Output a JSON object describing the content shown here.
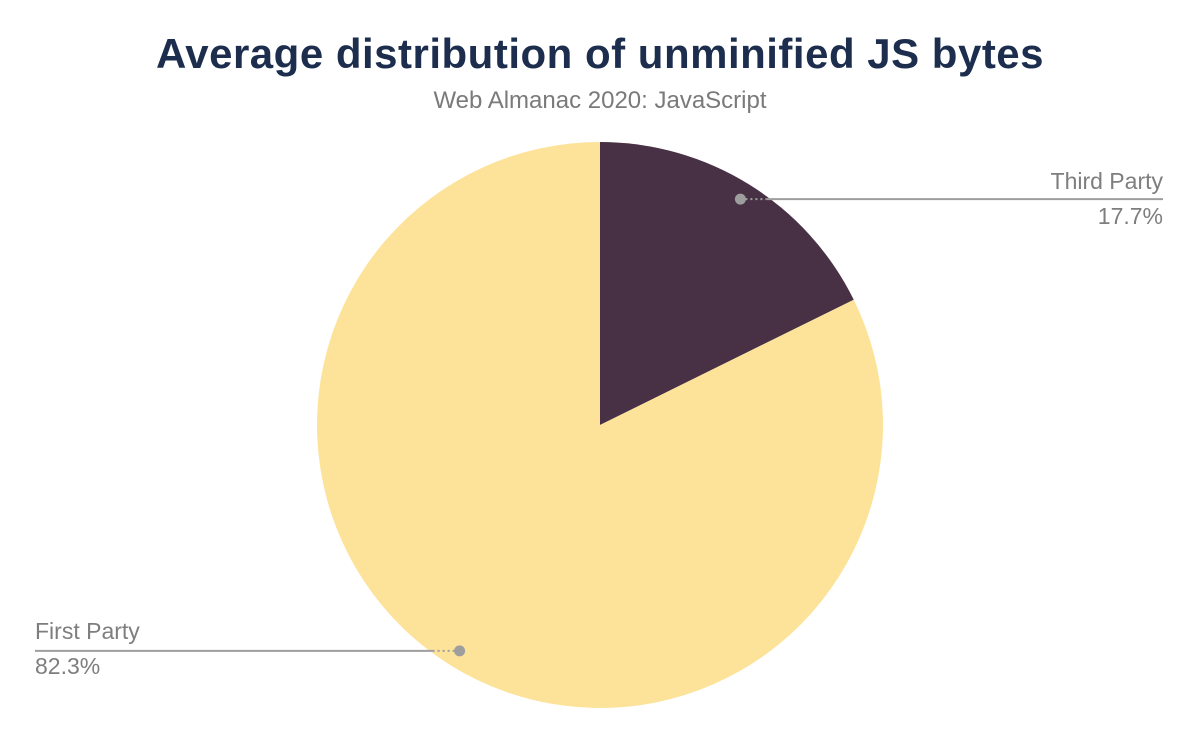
{
  "page": {
    "background_color": "#ffffff"
  },
  "chart_data": {
    "type": "pie",
    "title": "Average distribution of unminified JS bytes",
    "subtitle": "Web Almanac 2020: JavaScript",
    "slices": [
      {
        "label": "Third Party",
        "value": 17.7,
        "display": "17.7%",
        "color": "#483144"
      },
      {
        "label": "First Party",
        "value": 82.3,
        "display": "82.3%",
        "color": "#fde39a"
      }
    ],
    "start_angle_deg": 0,
    "direction": "clockwise",
    "labels": "outside-callouts-with-leader-lines",
    "legend_position": "none",
    "colors": {
      "title": "#1c2d4d",
      "subtitle": "#7a7a7a",
      "callout_text": "#7e7e7e",
      "leader_line": "#9e9e9e"
    }
  }
}
